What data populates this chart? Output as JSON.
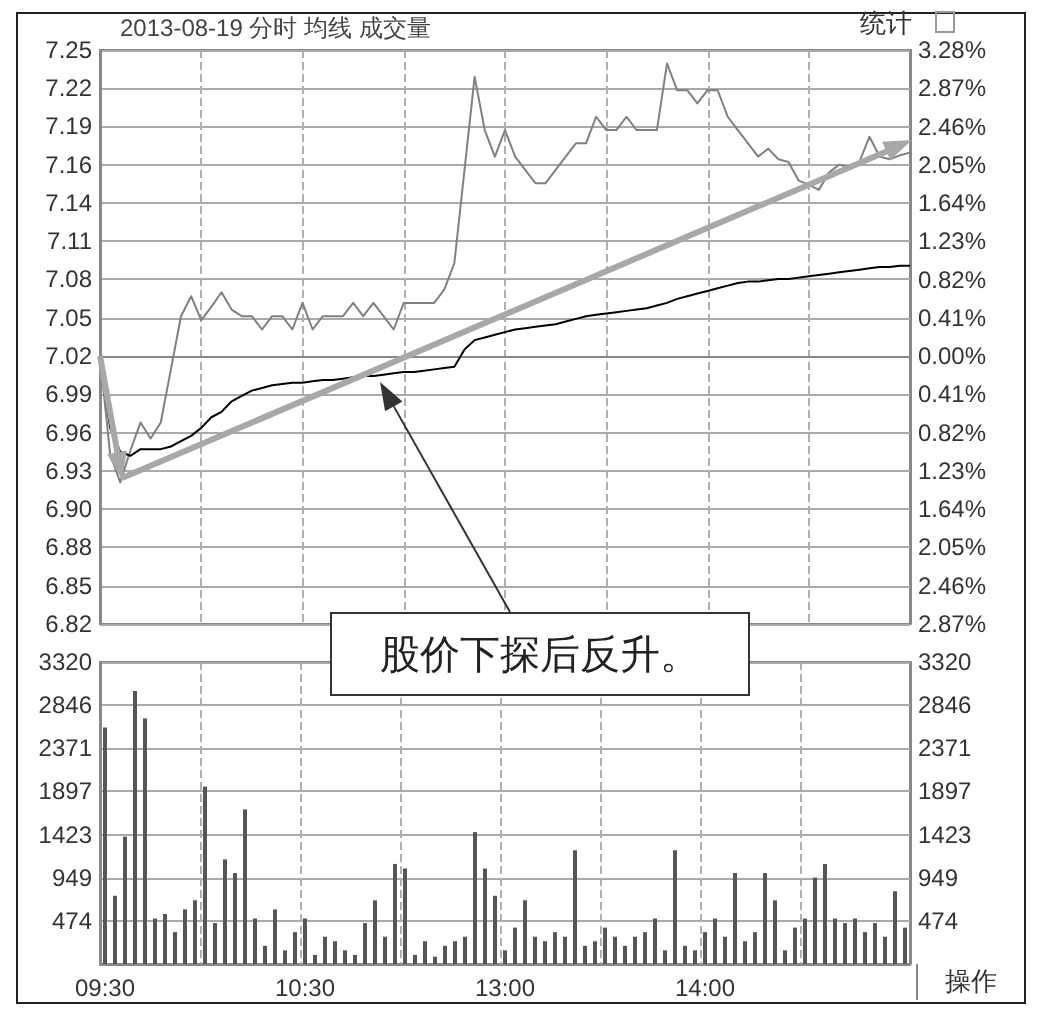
{
  "chart_data": [
    {
      "type": "line",
      "title": "2013-08-19 分时 均线 成交量",
      "annotations": [
        "股价下探后反升。",
        "统计"
      ],
      "categories": [
        null,
        null,
        null,
        null,
        null,
        null,
        null,
        null,
        null,
        null,
        null,
        null,
        null,
        null,
        null,
        null,
        null,
        null,
        null,
        null,
        null,
        null,
        null,
        null,
        null,
        null,
        null,
        null,
        null,
        null,
        null,
        null,
        null,
        null,
        null,
        null,
        null,
        null,
        null,
        null,
        null,
        null,
        null,
        null,
        null,
        null,
        null,
        null,
        null,
        null,
        null,
        null,
        null,
        null,
        null,
        null,
        null,
        null,
        null,
        null,
        null,
        null,
        null,
        null,
        null,
        null,
        null,
        null,
        null,
        null,
        null,
        null,
        null,
        null,
        null,
        null,
        null,
        null,
        null,
        null,
        null
      ],
      "series": [
        {
          "color": "#808080",
          "values": [
            7.02,
            6.946,
            6.925,
            6.949,
            6.97,
            6.958,
            6.97,
            7.01,
            7.05,
            7.065,
            7.047,
            7.057,
            7.068,
            7.055,
            7.05,
            7.05,
            7.04,
            7.05,
            7.05,
            7.04,
            7.06,
            7.04,
            7.05,
            7.05,
            7.05,
            7.06,
            7.05,
            7.06,
            7.05,
            7.04,
            7.06,
            7.06,
            7.06,
            7.06,
            7.07,
            7.09,
            7.16,
            7.23,
            7.19,
            7.17,
            7.19,
            7.17,
            7.16,
            7.15,
            7.15,
            7.16,
            7.17,
            7.18,
            7.18,
            7.2,
            7.19,
            7.19,
            7.2,
            7.19,
            7.19,
            7.19,
            7.24,
            7.22,
            7.22,
            7.21,
            7.22,
            7.22,
            7.2,
            7.19,
            7.18,
            7.17,
            7.176,
            7.168,
            7.166,
            7.152,
            7.149,
            7.145,
            7.158,
            7.164,
            7.162,
            7.166,
            7.185,
            7.17,
            7.168,
            7.171,
            7.173
          ]
        },
        {
          "color": "#000000",
          "values": [
            7.02,
            6.966,
            6.948,
            6.945,
            6.95,
            6.95,
            6.95,
            6.952,
            6.956,
            6.96,
            6.966,
            6.974,
            6.978,
            6.986,
            6.99,
            6.994,
            6.996,
            6.998,
            6.999,
            7.0,
            7.0,
            7.001,
            7.002,
            7.002,
            7.003,
            7.004,
            7.005,
            7.005,
            7.006,
            7.007,
            7.008,
            7.008,
            7.009,
            7.01,
            7.011,
            7.012,
            7.025,
            7.032,
            7.034,
            7.036,
            7.038,
            7.04,
            7.041,
            7.042,
            7.043,
            7.044,
            7.046,
            7.048,
            7.05,
            7.051,
            7.052,
            7.053,
            7.054,
            7.055,
            7.056,
            7.058,
            7.06,
            7.063,
            7.065,
            7.067,
            7.069,
            7.071,
            7.073,
            7.075,
            7.076,
            7.076,
            7.077,
            7.078,
            7.078,
            7.079,
            7.08,
            7.081,
            7.082,
            7.083,
            7.084,
            7.085,
            7.086,
            7.087,
            7.087,
            7.088,
            7.088
          ]
        }
      ],
      "ylim": [
        6.8185,
        7.2502
      ],
      "yticks": [
        {
          "value": 6.8185,
          "label": "6.82"
        },
        {
          "value": 6.8473,
          "label": "6.85"
        },
        {
          "value": 6.8761,
          "label": "6.88"
        },
        {
          "value": 6.9049,
          "label": "6.90"
        },
        {
          "value": 6.9337,
          "label": "6.93"
        },
        {
          "value": 6.9624,
          "label": "6.96"
        },
        {
          "value": 6.9912,
          "label": "6.99"
        },
        {
          "value": 7.02,
          "label": "7.02"
        },
        {
          "value": 7.0488,
          "label": "7.05"
        },
        {
          "value": 7.0776,
          "label": "7.08"
        },
        {
          "value": 7.1063,
          "label": "7.11"
        },
        {
          "value": 7.1351,
          "label": "7.14"
        },
        {
          "value": 7.1639,
          "label": "7.16"
        },
        {
          "value": 7.1927,
          "label": "7.19"
        },
        {
          "value": 7.2214,
          "label": "7.22"
        },
        {
          "value": 7.2502,
          "label": "7.25"
        }
      ],
      "y2lim": [
        -2.87,
        3.28
      ],
      "y2ticks": [
        {
          "value": -2.87,
          "label": "2.87%"
        },
        {
          "value": -2.46,
          "label": "2.46%"
        },
        {
          "value": -2.05,
          "label": "2.05%"
        },
        {
          "value": -1.64,
          "label": "1.64%"
        },
        {
          "value": -1.23,
          "label": "1.23%"
        },
        {
          "value": -0.82,
          "label": "0.82%"
        },
        {
          "value": -0.41,
          "label": "0.41%"
        },
        {
          "value": 0,
          "label": "0.00%"
        },
        {
          "value": 0.41,
          "label": "0.41%"
        },
        {
          "value": 0.82,
          "label": "0.82%"
        },
        {
          "value": 1.23,
          "label": "1.23%"
        },
        {
          "value": 1.64,
          "label": "1.64%"
        },
        {
          "value": 2.05,
          "label": "2.05%"
        },
        {
          "value": 2.46,
          "label": "2.46%"
        },
        {
          "value": 2.87,
          "label": "2.87%"
        },
        {
          "value": 3.28,
          "label": "3.28%"
        }
      ],
      "grid": true,
      "tick_labels": "y",
      "line_style": "solid"
    },
    {
      "type": "bar",
      "annotations": [
        "操作"
      ],
      "categories": [
        "09:30",
        null,
        null,
        null,
        null,
        null,
        null,
        null,
        null,
        null,
        null,
        null,
        null,
        null,
        null,
        null,
        null,
        null,
        null,
        null,
        "10:30",
        null,
        null,
        null,
        null,
        null,
        null,
        null,
        null,
        null,
        null,
        null,
        null,
        null,
        null,
        null,
        null,
        null,
        null,
        null,
        "13:00",
        null,
        null,
        null,
        null,
        null,
        null,
        null,
        null,
        null,
        null,
        null,
        null,
        null,
        null,
        null,
        null,
        null,
        null,
        null,
        "14:00",
        null,
        null,
        null,
        null,
        null,
        null,
        null,
        null,
        null,
        null,
        null,
        null,
        null,
        null,
        null,
        null,
        null,
        null,
        null,
        null
      ],
      "series": [
        {
          "color": "#555555",
          "values": [
            2600,
            750,
            1400,
            3000,
            2700,
            500,
            550,
            350,
            600,
            700,
            1950,
            450,
            1150,
            1000,
            1700,
            500,
            200,
            600,
            150,
            350,
            500,
            100,
            300,
            250,
            150,
            100,
            450,
            700,
            300,
            1100,
            1050,
            100,
            250,
            80,
            200,
            250,
            300,
            1450,
            1050,
            750,
            150,
            400,
            700,
            300,
            250,
            350,
            300,
            1250,
            200,
            250,
            400,
            300,
            200,
            300,
            350,
            500,
            150,
            1250,
            200,
            150,
            350,
            500,
            300,
            1000,
            250,
            350,
            1000,
            700,
            150,
            400,
            500,
            950,
            1100,
            500,
            450,
            500,
            350,
            450,
            300,
            800,
            400
          ]
        }
      ],
      "ylim": [
        0,
        3320
      ],
      "yticks": [
        474,
        949,
        1423,
        1897,
        2371,
        2846,
        3320
      ],
      "y2lim": [
        0,
        3320
      ],
      "y2ticks": [
        474,
        949,
        1423,
        1897,
        2371,
        2846,
        3320
      ],
      "grid": true
    }
  ]
}
